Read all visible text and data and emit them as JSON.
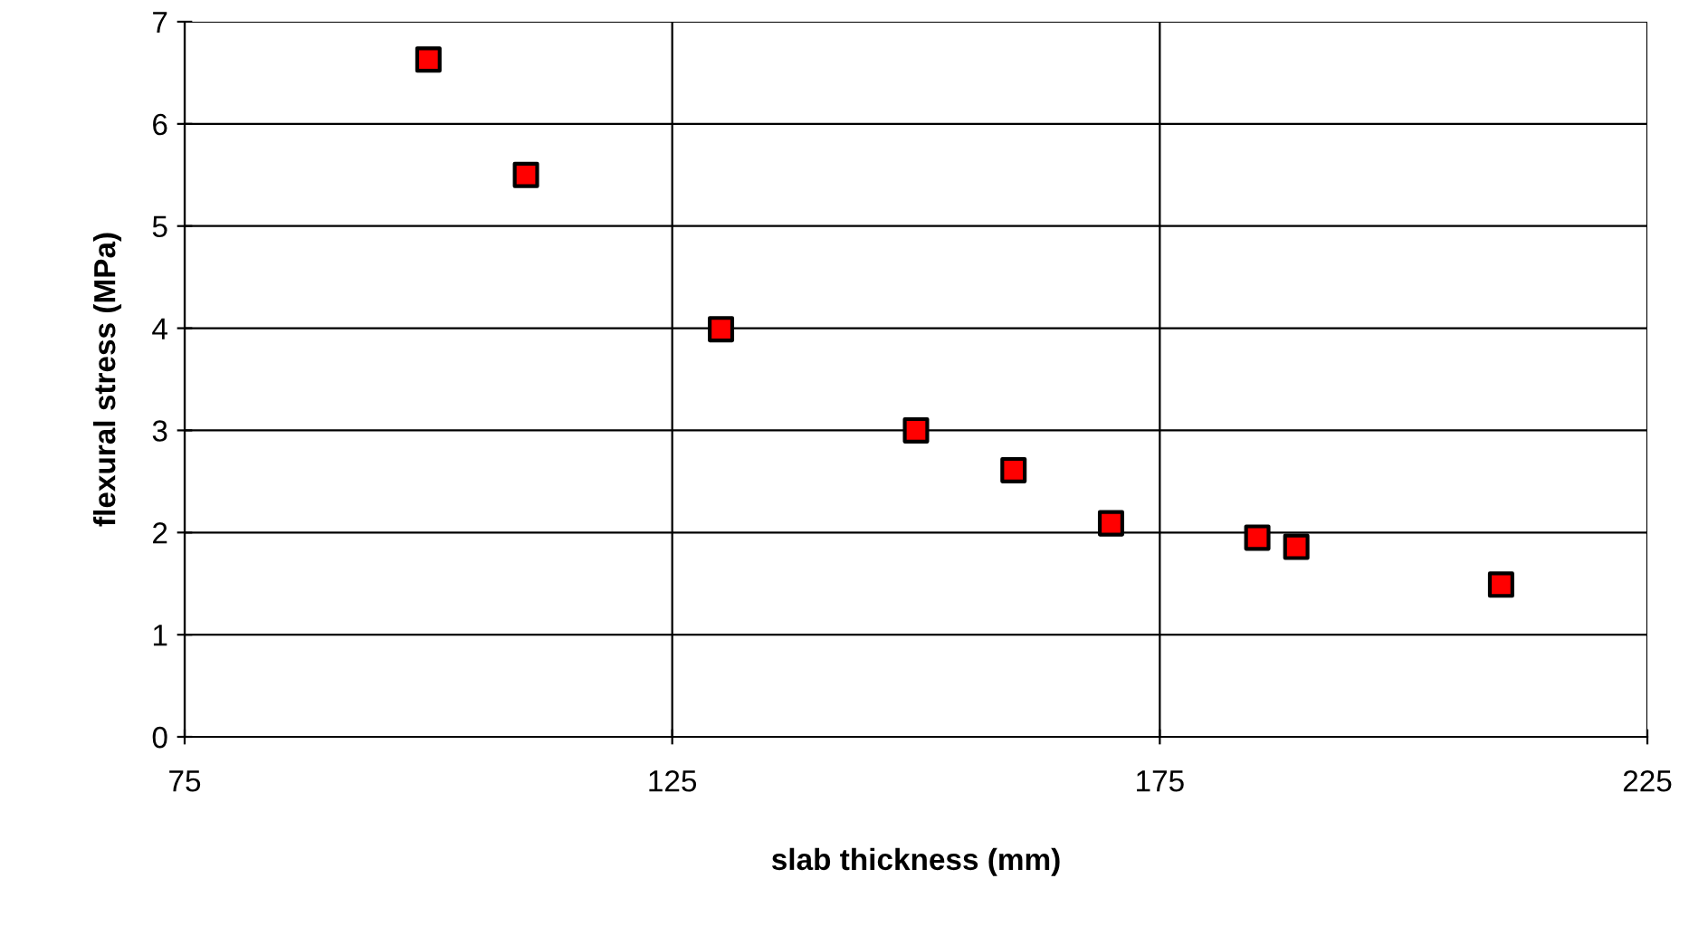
{
  "chart_data": {
    "type": "scatter",
    "xlabel": "slab thickness (mm)",
    "ylabel": "flexural stress (MPa)",
    "x": [
      100,
      110,
      130,
      150,
      160,
      170,
      185,
      189,
      210
    ],
    "values": [
      6.63,
      5.5,
      3.99,
      3.0,
      2.61,
      2.09,
      1.95,
      1.86,
      1.49
    ],
    "color": "#ff0000",
    "marker": "square",
    "xlim": [
      75,
      225
    ],
    "xticks": [
      75,
      125,
      175,
      225
    ],
    "ylim": [
      0,
      7
    ],
    "yticks": [
      0,
      1,
      2,
      3,
      4,
      5,
      6,
      7
    ],
    "grid": true,
    "legend": false
  }
}
